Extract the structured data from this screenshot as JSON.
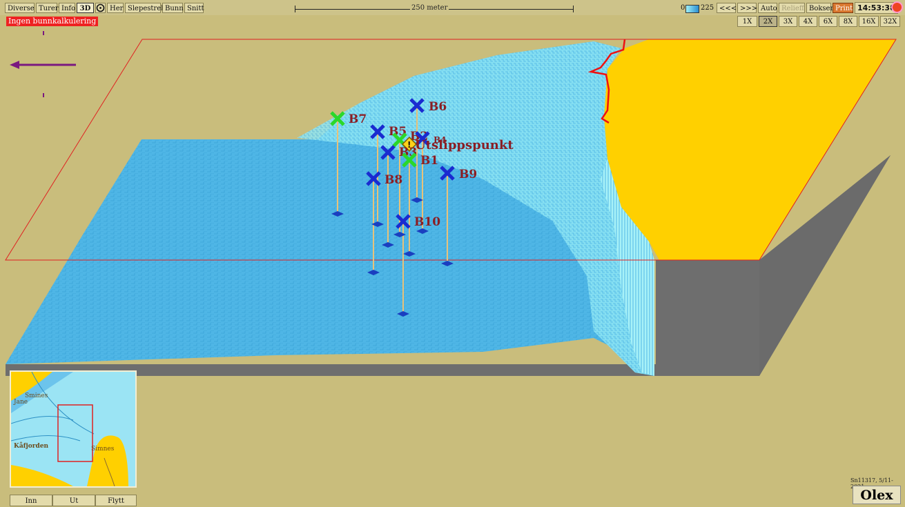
{
  "toolbar": {
    "buttons": [
      "Diverse",
      "Turer",
      "Info",
      "3D",
      "Her",
      "Slepestrek",
      "Bunn",
      "Snitt"
    ],
    "scale_label": "250 meter",
    "depth_min": "0",
    "depth_max": "225",
    "right_buttons": [
      "<<<",
      ">>>",
      "Auto",
      "Relieff",
      "Bokser",
      "Print"
    ],
    "time": "14:53:38"
  },
  "warning": "Ingen bunnkalkulering",
  "zoom": [
    "1X",
    "2X",
    "3X",
    "4X",
    "6X",
    "8X",
    "16X",
    "32X"
  ],
  "zoom_selected": "2X",
  "markers": [
    {
      "label": "B6",
      "type": "blue"
    },
    {
      "label": "B7",
      "type": "green"
    },
    {
      "label": "B5",
      "type": "blue"
    },
    {
      "label": "B2",
      "type": "green"
    },
    {
      "label": "B4",
      "type": "blue"
    },
    {
      "label": "Utslippspunkt",
      "type": "warning"
    },
    {
      "label": "B3",
      "type": "blue"
    },
    {
      "label": "B1",
      "type": "green"
    },
    {
      "label": "B9",
      "type": "blue"
    },
    {
      "label": "B8",
      "type": "blue"
    },
    {
      "label": "B10",
      "type": "blue"
    }
  ],
  "minimap": {
    "labels": [
      "Smines",
      "Jane",
      "Kåfjorden",
      "Simnes"
    ],
    "buttons": [
      "Inn",
      "Ut",
      "Flytt"
    ]
  },
  "serial": "Sn11317, 5/11-2021",
  "logo": "Olex",
  "colors": {
    "background": "#c9bd7c",
    "water": "#4fb6e6",
    "shallow": "#9beff5",
    "land": "#ffd000",
    "marker_blue": "#1a2bd0",
    "marker_green": "#2ad82a",
    "label": "#8a1e24"
  }
}
